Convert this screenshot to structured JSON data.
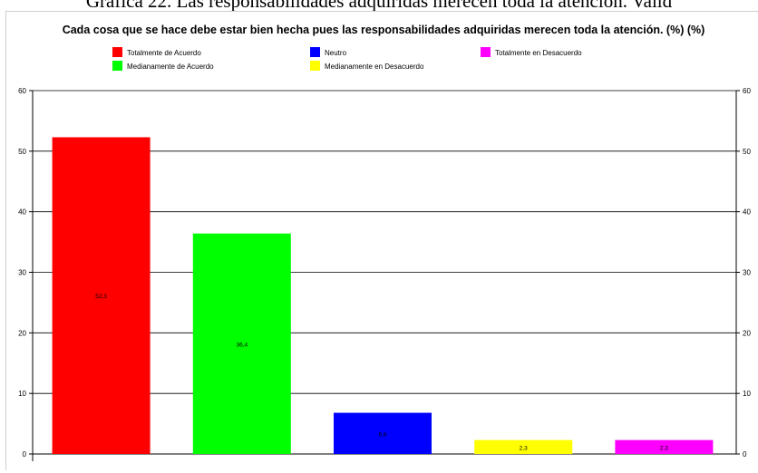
{
  "page_caption": "Grafica 22. Las responsabilidades adquiridas merecen toda la atención. Valid",
  "chart_data": {
    "type": "bar",
    "title": "Cada cosa que se hace debe estar bien hecha pues las responsabilidades adquiridas merecen toda la atención. (%) (%)",
    "categories": [
      "Totalmente de Acuerdo",
      "Medianamente de Acuerdo",
      "Neutro",
      "Medianamente en Desacuerdo",
      "Totalmente en Desacuerdo"
    ],
    "values": [
      52.3,
      36.4,
      6.8,
      2.3,
      2.3
    ],
    "value_labels": [
      "52,3",
      "36,4",
      "6,8",
      "2,3",
      "2,3"
    ],
    "colors": [
      "#ff0000",
      "#00ff00",
      "#0000ff",
      "#ffff00",
      "#ff00ff"
    ],
    "legend": [
      {
        "name": "Totalmente de Acuerdo",
        "color": "#ff0000"
      },
      {
        "name": "Neutro",
        "color": "#0000ff"
      },
      {
        "name": "Totalmente en Desacuerdo",
        "color": "#ff00ff"
      },
      {
        "name": "Medianamente de Acuerdo",
        "color": "#00ff00"
      },
      {
        "name": "Medianamente en Desacuerdo",
        "color": "#ffff00"
      }
    ],
    "legend_position": "top",
    "ylim": [
      0,
      60
    ],
    "yticks": [
      "0",
      "10",
      "20",
      "30",
      "40",
      "50",
      "60"
    ],
    "grid": true,
    "xlabel": "",
    "ylabel": ""
  }
}
